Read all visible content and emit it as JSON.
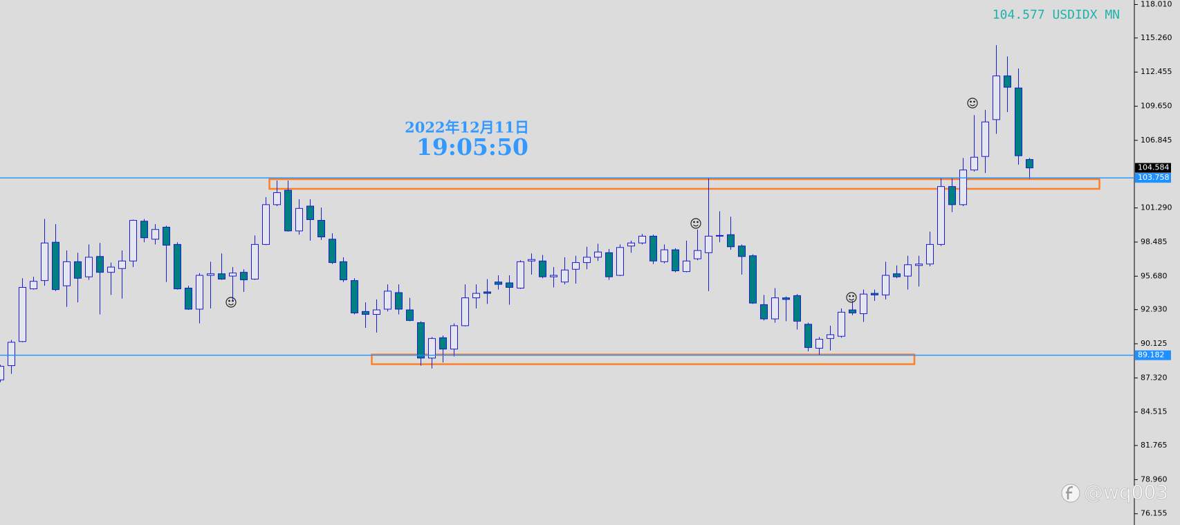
{
  "chart_data": {
    "type": "candlestick",
    "title": "104.577 USDIDX MN",
    "date_text": "2022年12月11日",
    "time_text": "19:05:50",
    "watermark": "@wq003",
    "ylim": [
      75.23,
      118.38
    ],
    "yticks": [
      {
        "value": 118.01,
        "label": "118.010"
      },
      {
        "value": 115.26,
        "label": "115.260"
      },
      112.455,
      {
        "value": 109.65,
        "label": "109.650"
      },
      106.845,
      {
        "value": 101.29,
        "label": "101.290"
      },
      98.485,
      {
        "value": 95.68,
        "label": "95.680"
      },
      {
        "value": 92.93,
        "label": "92.930"
      },
      90.125,
      {
        "value": 87.32,
        "label": "87.320"
      },
      84.515,
      81.765,
      {
        "value": 78.96,
        "label": "78.960"
      },
      76.155
    ],
    "hlines": [
      103.758,
      89.182
    ],
    "hline_color": "#1e90ff",
    "current_price": 104.584,
    "up_color": "#e6e6f2",
    "down_color": "#008080",
    "wick_color": "#1a1ad0",
    "open": [
      87.16,
      88.33,
      90.31,
      94.64,
      95.32,
      98.47,
      94.89,
      96.87,
      95.63,
      97.3,
      96.0,
      96.31,
      96.93,
      100.2,
      98.72,
      99.71,
      98.29,
      94.7,
      92.97,
      95.75,
      95.88,
      95.69,
      96.0,
      95.44,
      98.29,
      101.56,
      102.74,
      99.4,
      101.44,
      100.27,
      98.72,
      96.87,
      95.32,
      92.78,
      92.54,
      92.97,
      94.33,
      92.91,
      91.86,
      88.95,
      90.62,
      89.69,
      91.61,
      93.9,
      94.39,
      95.2,
      95.13,
      94.7,
      96.93,
      96.93,
      95.63,
      95.2,
      96.25,
      96.8,
      97.24,
      97.61,
      95.75,
      98.16,
      98.41,
      98.97,
      96.87,
      97.85,
      96.06,
      97.11,
      97.61,
      99.03,
      99.09,
      98.16,
      97.36,
      93.34,
      92.17,
      93.9,
      94.08,
      91.73,
      89.76,
      90.56,
      90.74,
      92.91,
      92.6,
      94.27,
      94.14,
      95.88,
      95.69,
      96.56,
      96.68,
      98.29,
      103.05,
      101.56,
      104.41,
      105.52,
      108.55,
      112.14,
      111.15,
      105.27
    ],
    "high": [
      88.4,
      90.44,
      95.51,
      95.63,
      100.39,
      99.96,
      97.79,
      97.61,
      98.29,
      98.41,
      96.8,
      97.79,
      100.33,
      100.39,
      99.96,
      99.83,
      98.47,
      94.89,
      95.94,
      96.87,
      97.55,
      96.43,
      96.25,
      99.03,
      102.18,
      103.54,
      103.54,
      102.0,
      102.0,
      101.32,
      99.21,
      97.24,
      95.51,
      93.53,
      93.77,
      95.01,
      95.01,
      93.9,
      91.98,
      90.68,
      90.81,
      91.8,
      95.01,
      95.01,
      95.44,
      95.75,
      95.75,
      96.99,
      97.55,
      97.42,
      96.43,
      97.24,
      97.36,
      98.1,
      98.35,
      97.92,
      98.29,
      98.6,
      99.15,
      99.09,
      98.29,
      97.98,
      98.6,
      99.52,
      103.73,
      101.01,
      100.57,
      98.29,
      97.48,
      94.14,
      94.7,
      94.02,
      94.21,
      91.86,
      90.68,
      91.61,
      93.03,
      93.65,
      94.58,
      94.58,
      96.87,
      96.56,
      97.36,
      97.36,
      99.34,
      103.73,
      103.79,
      105.4,
      108.92,
      109.35,
      114.67,
      113.74,
      112.75,
      105.4
    ],
    "low": [
      86.97,
      87.65,
      90.25,
      94.58,
      94.89,
      94.45,
      93.16,
      93.53,
      95.38,
      92.54,
      94.14,
      93.84,
      96.43,
      98.47,
      98.29,
      95.2,
      94.58,
      92.91,
      91.8,
      93.03,
      95.38,
      93.65,
      94.39,
      95.38,
      98.23,
      101.44,
      99.34,
      99.09,
      98.6,
      98.66,
      96.68,
      95.2,
      92.54,
      91.43,
      91.05,
      92.78,
      92.54,
      91.98,
      88.33,
      88.09,
      88.58,
      89.08,
      91.55,
      93.03,
      93.4,
      94.58,
      93.34,
      94.64,
      95.81,
      95.51,
      94.76,
      95.01,
      95.07,
      96.25,
      96.93,
      95.38,
      95.69,
      97.61,
      98.29,
      96.68,
      96.74,
      96.0,
      96.0,
      96.99,
      94.45,
      98.47,
      97.85,
      95.81,
      93.4,
      92.04,
      91.86,
      91.98,
      91.3,
      89.51,
      89.2,
      89.57,
      90.62,
      92.48,
      91.92,
      93.65,
      93.77,
      95.51,
      94.58,
      94.83,
      96.49,
      98.16,
      100.95,
      101.44,
      104.28,
      104.16,
      107.38,
      109.17,
      104.84,
      103.67
    ],
    "close": [
      88.27,
      90.25,
      94.76,
      95.26,
      98.41,
      94.58,
      96.87,
      95.51,
      97.24,
      96.0,
      96.43,
      96.93,
      100.27,
      98.84,
      99.52,
      98.23,
      94.64,
      92.97,
      95.75,
      95.88,
      95.44,
      95.94,
      95.38,
      98.29,
      101.56,
      102.55,
      99.4,
      101.25,
      100.33,
      98.91,
      96.8,
      95.38,
      92.66,
      92.54,
      92.91,
      94.45,
      92.97,
      92.04,
      88.95,
      90.56,
      89.69,
      91.61,
      93.9,
      94.27,
      94.27,
      95.01,
      94.76,
      96.87,
      97.05,
      95.63,
      95.75,
      96.19,
      96.8,
      97.24,
      97.67,
      95.63,
      98.04,
      98.41,
      98.97,
      96.93,
      97.85,
      96.12,
      96.93,
      97.79,
      98.97,
      98.97,
      98.1,
      97.3,
      93.47,
      92.17,
      93.9,
      93.77,
      91.98,
      89.82,
      90.5,
      90.87,
      92.72,
      92.66,
      94.21,
      94.14,
      95.75,
      95.63,
      96.62,
      96.68,
      98.29,
      103.05,
      101.56,
      104.41,
      105.46,
      108.36,
      112.14,
      111.21,
      105.58,
      104.58
    ]
  }
}
